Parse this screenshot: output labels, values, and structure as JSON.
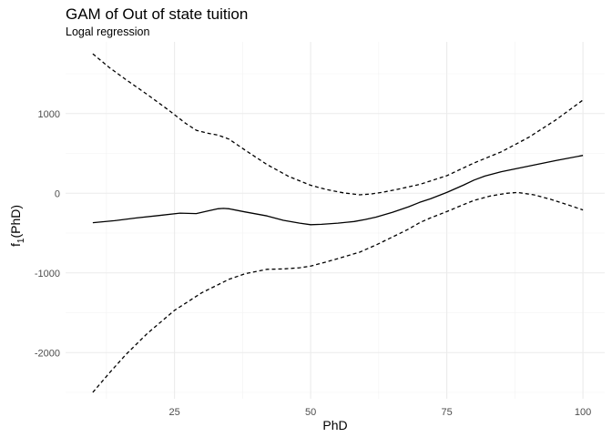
{
  "chart_data": {
    "type": "line",
    "title": "GAM of Out of state tuition",
    "subtitle": "Logal regression",
    "xlabel": "PhD",
    "ylabel": {
      "base": "f",
      "sub": "1",
      "rest": "(PhD)"
    },
    "xlim": [
      5,
      104
    ],
    "ylim": [
      -2580,
      1900
    ],
    "xticks": [
      25,
      50,
      75,
      100
    ],
    "xtick_labels": [
      "25",
      "50",
      "75",
      "100"
    ],
    "yticks": [
      -2000,
      -1000,
      0,
      1000
    ],
    "ytick_labels": [
      "-2000",
      "-1000",
      "0",
      "1000"
    ],
    "grid": true,
    "series": [
      {
        "role": "fit",
        "style": "solid",
        "x": [
          10,
          14,
          18,
          22,
          26,
          29,
          31,
          33,
          34,
          35,
          38,
          42,
          45,
          48,
          50,
          52,
          55,
          58,
          60,
          62,
          65,
          68,
          70,
          72,
          75,
          78,
          80,
          82,
          85,
          90,
          95,
          100
        ],
        "y": [
          -370,
          -345,
          -310,
          -280,
          -250,
          -255,
          -225,
          -195,
          -190,
          -195,
          -235,
          -285,
          -340,
          -375,
          -395,
          -390,
          -375,
          -355,
          -330,
          -300,
          -240,
          -170,
          -115,
          -70,
          10,
          100,
          165,
          215,
          270,
          340,
          410,
          475
        ]
      },
      {
        "role": "upper band",
        "style": "dashed",
        "x": [
          10,
          13,
          16,
          20,
          24,
          27,
          29,
          31,
          33,
          35,
          38,
          42,
          46,
          50,
          53,
          56,
          59,
          61,
          63,
          66,
          70,
          75,
          80,
          85,
          90,
          95,
          100
        ],
        "y": [
          1750,
          1580,
          1430,
          1240,
          1040,
          880,
          790,
          755,
          730,
          680,
          540,
          360,
          210,
          100,
          45,
          5,
          -20,
          -10,
          10,
          50,
          110,
          220,
          380,
          520,
          700,
          920,
          1170
        ]
      },
      {
        "role": "lower band",
        "style": "dashed",
        "x": [
          10,
          13,
          16,
          20,
          25,
          30,
          35,
          38,
          42,
          45,
          48,
          50,
          53,
          56,
          59,
          62,
          65,
          68,
          70,
          72,
          75,
          78,
          80,
          83,
          86,
          88,
          91,
          94,
          97,
          100
        ],
        "y": [
          -2500,
          -2260,
          -2030,
          -1760,
          -1470,
          -1250,
          -1080,
          -1010,
          -955,
          -950,
          -935,
          -915,
          -860,
          -800,
          -740,
          -650,
          -550,
          -450,
          -370,
          -310,
          -230,
          -145,
          -90,
          -35,
          0,
          10,
          -20,
          -75,
          -140,
          -210
        ]
      }
    ]
  }
}
